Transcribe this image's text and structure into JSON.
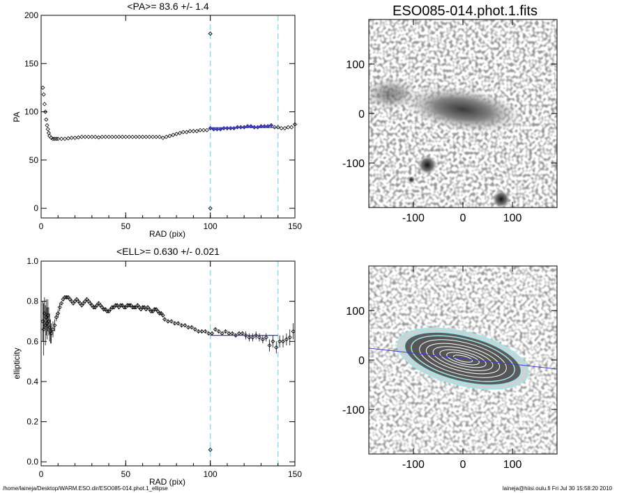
{
  "footer": {
    "left_path": "/home/laineja/Desktop/WARM.ESO.dir/ESO085-014.phot.1_ellipse",
    "right_stamp": "laineja@hiisi.oulu.fi  Fri Jul 30 15:58:20 2010"
  },
  "images": {
    "title": "ESO085-014.phot.1.fits",
    "x_ticks": [
      -100,
      0,
      100
    ],
    "y_ticks": [
      100,
      0,
      -100
    ],
    "fit_line_color": "#3b3bd6",
    "contour_color": "#9fe6ea"
  },
  "chart_data": [
    {
      "type": "scatter",
      "panel": "pa",
      "title": "<PA>=  83.6 +/-   1.4",
      "xlabel": "RAD (pix)",
      "ylabel": "PA",
      "xlim": [
        0,
        150
      ],
      "ylim": [
        -10,
        200
      ],
      "x_ticks": [
        0,
        50,
        100,
        150
      ],
      "y_ticks": [
        0,
        50,
        100,
        150,
        200
      ],
      "vlines": [
        100,
        140
      ],
      "outliers": [
        [
          100,
          181
        ],
        [
          100,
          0
        ]
      ],
      "fit": {
        "x": [
          100,
          140
        ],
        "y": [
          83.6,
          83.6
        ]
      },
      "series": [
        {
          "x": [
            1,
            1.5,
            2,
            2.5,
            3,
            3.5,
            4,
            4.5,
            5,
            6,
            7,
            8,
            9,
            10,
            12,
            14,
            16,
            18,
            20,
            22,
            24,
            26,
            28,
            30,
            32,
            34,
            36,
            38,
            40,
            42,
            44,
            46,
            48,
            50,
            52,
            54,
            56,
            58,
            60,
            62,
            64,
            66,
            68,
            70,
            72,
            74,
            76,
            78,
            80,
            82,
            84,
            86,
            88,
            90,
            92,
            94,
            96,
            98
          ],
          "y": [
            125,
            118,
            108,
            100,
            92,
            86,
            82,
            78,
            75,
            73,
            72,
            72,
            72,
            72,
            72,
            72,
            72.5,
            73,
            73,
            73.5,
            74,
            74,
            74,
            74,
            74,
            73.5,
            74,
            74,
            74,
            74,
            74,
            74,
            74,
            74,
            74,
            74,
            74,
            74,
            74,
            74,
            74,
            74,
            74,
            74,
            73,
            74,
            75,
            76,
            77,
            78,
            79,
            79,
            80,
            80,
            80,
            81,
            81,
            81
          ]
        },
        {
          "x": [
            100,
            102,
            104,
            106,
            108,
            110,
            112,
            114,
            116,
            118,
            120,
            122,
            124,
            126,
            128,
            130,
            132,
            134,
            136
          ],
          "y": [
            83,
            82,
            82,
            82,
            83,
            83,
            83,
            83,
            84,
            84,
            84,
            85,
            85,
            84,
            84,
            85,
            85,
            85,
            86
          ]
        },
        {
          "x": [
            138,
            140,
            142,
            144,
            146,
            148,
            150
          ],
          "y": [
            84,
            84,
            83,
            83,
            84,
            84,
            87
          ]
        }
      ]
    },
    {
      "type": "scatter",
      "panel": "ellipticity",
      "title": "<ELL>= 0.630 +/-  0.021",
      "xlabel": "RAD (pix)",
      "ylabel": "ellipticity",
      "xlim": [
        0,
        150
      ],
      "ylim": [
        -0.02,
        1.0
      ],
      "x_ticks": [
        0,
        50,
        100,
        150
      ],
      "y_ticks": [
        0.0,
        0.2,
        0.4,
        0.6,
        0.8,
        1.0
      ],
      "y_tick_labels": [
        "0.0",
        "0.2",
        "0.4",
        "0.6",
        "0.8",
        "1.0"
      ],
      "vlines": [
        100,
        140
      ],
      "outliers": [
        [
          100,
          0.06
        ]
      ],
      "fit": {
        "x": [
          100,
          140
        ],
        "y": [
          0.63,
          0.63
        ]
      },
      "series": [
        {
          "x": [
            1,
            1.5,
            2,
            2.5,
            3,
            3.5,
            4,
            4.5,
            5,
            5.5,
            6,
            7,
            8,
            9,
            10,
            11,
            12,
            13,
            14,
            15,
            16,
            17,
            18,
            19,
            20,
            21,
            22,
            23,
            24,
            25,
            26,
            27,
            28,
            29,
            30,
            31,
            32,
            33,
            34,
            35,
            36,
            37,
            38,
            39,
            40,
            41,
            42,
            43,
            44,
            45,
            46,
            47,
            48,
            49,
            50,
            51,
            52,
            53,
            54,
            55,
            56,
            57,
            58,
            59,
            60,
            61,
            62,
            63,
            64,
            65,
            66,
            67,
            68,
            69,
            70,
            71,
            72
          ],
          "y": [
            0.7,
            0.66,
            0.74,
            0.68,
            0.72,
            0.69,
            0.73,
            0.7,
            0.67,
            0.65,
            0.64,
            0.66,
            0.68,
            0.72,
            0.74,
            0.77,
            0.79,
            0.81,
            0.82,
            0.82,
            0.82,
            0.81,
            0.8,
            0.79,
            0.8,
            0.81,
            0.8,
            0.79,
            0.78,
            0.79,
            0.8,
            0.81,
            0.8,
            0.79,
            0.78,
            0.77,
            0.77,
            0.78,
            0.79,
            0.78,
            0.77,
            0.76,
            0.76,
            0.75,
            0.75,
            0.76,
            0.77,
            0.77,
            0.78,
            0.78,
            0.77,
            0.78,
            0.78,
            0.77,
            0.77,
            0.78,
            0.78,
            0.78,
            0.77,
            0.77,
            0.77,
            0.78,
            0.77,
            0.76,
            0.77,
            0.77,
            0.76,
            0.77,
            0.76,
            0.75,
            0.75,
            0.76,
            0.76,
            0.75,
            0.74,
            0.74,
            0.73
          ],
          "err": [
            0.1,
            0.13,
            0.08,
            0.1,
            0.09,
            0.08,
            0.08,
            0.07,
            0.07,
            0.06,
            0.05,
            0.04,
            0.03,
            0.02,
            0.02,
            0.02,
            0.01,
            0.01,
            0.01,
            0.01,
            0.01,
            0.01,
            0.01,
            0.01,
            0.01,
            0.01,
            0.01,
            0.01,
            0.01,
            0.01,
            0.01,
            0.01,
            0.01,
            0.01,
            0.01,
            0.01,
            0.01,
            0.01,
            0.01,
            0.01,
            0.01,
            0.01,
            0.01,
            0.01,
            0.01,
            0.01,
            0.01,
            0.01,
            0.01,
            0.01,
            0.01,
            0.01,
            0.01,
            0.01,
            0.01,
            0.01,
            0.01,
            0.01,
            0.01,
            0.01,
            0.01,
            0.01,
            0.01,
            0.01,
            0.01,
            0.01,
            0.01,
            0.01,
            0.01,
            0.01,
            0.01,
            0.01,
            0.01,
            0.01,
            0.01,
            0.01,
            0.01
          ]
        },
        {
          "x": [
            73,
            75,
            77,
            79,
            81,
            83,
            85,
            87,
            89,
            91,
            93,
            95,
            97,
            99,
            101,
            103,
            105,
            107,
            109,
            111,
            113,
            115,
            117,
            119,
            121,
            123,
            125,
            127,
            129,
            131,
            133,
            135,
            137,
            139,
            141,
            143,
            145,
            147,
            149
          ],
          "y": [
            0.71,
            0.7,
            0.7,
            0.69,
            0.69,
            0.68,
            0.68,
            0.67,
            0.67,
            0.66,
            0.65,
            0.65,
            0.65,
            0.64,
            0.64,
            0.66,
            0.65,
            0.64,
            0.65,
            0.64,
            0.64,
            0.63,
            0.64,
            0.64,
            0.63,
            0.62,
            0.62,
            0.63,
            0.62,
            0.61,
            0.62,
            0.58,
            0.6,
            0.57,
            0.6,
            0.6,
            0.61,
            0.62,
            0.65
          ],
          "err": [
            0.01,
            0.01,
            0.01,
            0.01,
            0.01,
            0.01,
            0.01,
            0.01,
            0.01,
            0.01,
            0.01,
            0.01,
            0.01,
            0.01,
            0.01,
            0.01,
            0.01,
            0.01,
            0.01,
            0.01,
            0.01,
            0.01,
            0.01,
            0.01,
            0.02,
            0.02,
            0.02,
            0.02,
            0.02,
            0.02,
            0.02,
            0.03,
            0.03,
            0.03,
            0.03,
            0.03,
            0.03,
            0.04,
            0.04
          ]
        }
      ]
    }
  ]
}
